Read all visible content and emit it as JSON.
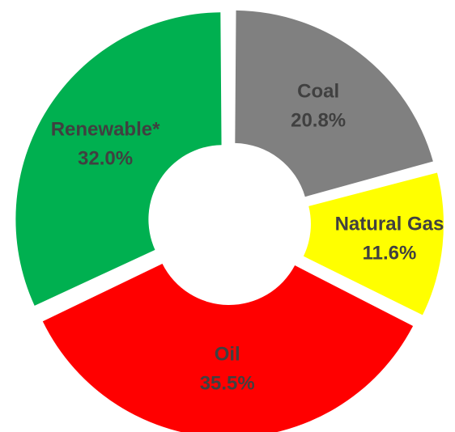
{
  "chart_data": {
    "type": "donut",
    "categories": [
      "Coal",
      "Natural Gas",
      "Oil",
      "Renewable*"
    ],
    "values": [
      20.8,
      11.6,
      35.5,
      32.0
    ],
    "value_labels": [
      "20.8%",
      "11.6%",
      "35.5%",
      "32.0%"
    ],
    "colors": [
      "#808080",
      "#ffff00",
      "#ff0000",
      "#00b050"
    ]
  }
}
